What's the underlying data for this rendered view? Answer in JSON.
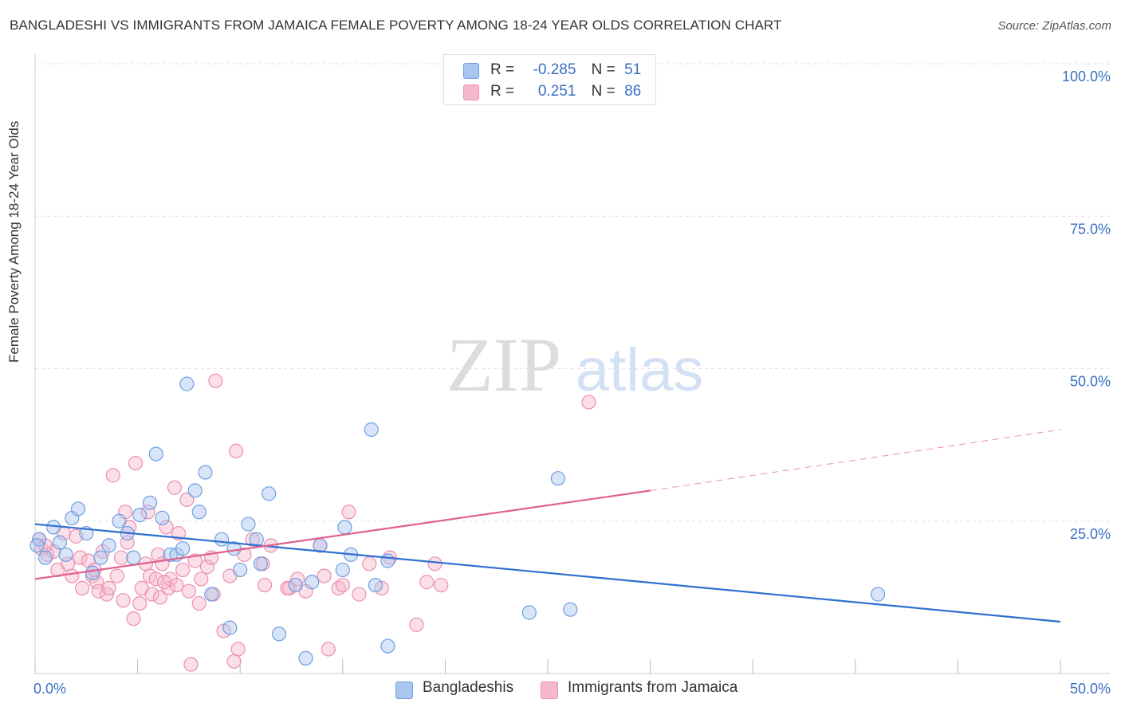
{
  "header": {
    "title": "BANGLADESHI VS IMMIGRANTS FROM JAMAICA FEMALE POVERTY AMONG 18-24 YEAR OLDS CORRELATION CHART",
    "source": "Source: ZipAtlas.com"
  },
  "legend": {
    "rows": [
      {
        "r_label": "R =",
        "r_value": "-0.285",
        "n_label": "N =",
        "n_value": "51"
      },
      {
        "r_label": "R =",
        "r_value": "0.251",
        "n_label": "N =",
        "n_value": "86"
      }
    ],
    "bottom": [
      "Bangladeshis",
      "Immigrants from Jamaica"
    ]
  },
  "watermark": {
    "zip": "ZIP",
    "atlas": "atlas"
  },
  "chart_data": {
    "type": "scatter",
    "ylabel": "Female Poverty Among 18-24 Year Olds",
    "xlim": [
      0,
      50
    ],
    "ylim": [
      0,
      100
    ],
    "x_tick_labels": [
      {
        "value": 0,
        "label": "0.0%"
      },
      {
        "value": 50,
        "label": "50.0%"
      }
    ],
    "y_tick_labels": [
      {
        "value": 25,
        "label": "25.0%"
      },
      {
        "value": 50,
        "label": "50.0%"
      },
      {
        "value": 75,
        "label": "75.0%"
      },
      {
        "value": 100,
        "label": "100.0%"
      }
    ],
    "grid": true,
    "legend_position": "top-center",
    "colors": {
      "bangladeshi_fill": "#a9c6f0",
      "bangladeshi_stroke": "#6f9edf",
      "bangladeshi_line": "#2f6fcf",
      "jamaica_fill": "#f6b8cc",
      "jamaica_stroke": "#ec8fae",
      "jamaica_line": "#e0608f",
      "tick_label": "#3a6fc4",
      "grid": "#e2e2e2"
    },
    "series": [
      {
        "name": "Bangladeshis",
        "trend": {
          "x": [
            0,
            50
          ],
          "y": [
            24.5,
            8.5
          ]
        },
        "points": [
          {
            "x": 0.2,
            "y": 22.0
          },
          {
            "x": 0.5,
            "y": 19.0
          },
          {
            "x": 0.9,
            "y": 24.0
          },
          {
            "x": 1.2,
            "y": 21.5
          },
          {
            "x": 1.5,
            "y": 19.5
          },
          {
            "x": 1.8,
            "y": 25.5
          },
          {
            "x": 2.1,
            "y": 27.0
          },
          {
            "x": 2.5,
            "y": 23.0
          },
          {
            "x": 2.8,
            "y": 16.5
          },
          {
            "x": 3.2,
            "y": 19.0
          },
          {
            "x": 3.6,
            "y": 21.0
          },
          {
            "x": 4.1,
            "y": 25.0
          },
          {
            "x": 4.5,
            "y": 23.0
          },
          {
            "x": 4.8,
            "y": 19.0
          },
          {
            "x": 5.1,
            "y": 26.0
          },
          {
            "x": 5.6,
            "y": 28.0
          },
          {
            "x": 5.9,
            "y": 36.0
          },
          {
            "x": 6.2,
            "y": 25.5
          },
          {
            "x": 6.6,
            "y": 19.5
          },
          {
            "x": 6.9,
            "y": 19.5
          },
          {
            "x": 7.2,
            "y": 20.5
          },
          {
            "x": 7.4,
            "y": 47.5
          },
          {
            "x": 7.8,
            "y": 30.0
          },
          {
            "x": 8.0,
            "y": 26.5
          },
          {
            "x": 8.3,
            "y": 33.0
          },
          {
            "x": 8.6,
            "y": 13.0
          },
          {
            "x": 9.1,
            "y": 22.0
          },
          {
            "x": 9.5,
            "y": 7.5
          },
          {
            "x": 9.7,
            "y": 20.5
          },
          {
            "x": 10.0,
            "y": 17.0
          },
          {
            "x": 10.4,
            "y": 24.5
          },
          {
            "x": 10.8,
            "y": 22.0
          },
          {
            "x": 11.0,
            "y": 18.0
          },
          {
            "x": 11.4,
            "y": 29.5
          },
          {
            "x": 11.9,
            "y": 6.5
          },
          {
            "x": 12.7,
            "y": 14.5
          },
          {
            "x": 13.2,
            "y": 2.5
          },
          {
            "x": 13.5,
            "y": 15.0
          },
          {
            "x": 13.9,
            "y": 21.0
          },
          {
            "x": 15.0,
            "y": 17.0
          },
          {
            "x": 15.1,
            "y": 24.0
          },
          {
            "x": 15.4,
            "y": 19.5
          },
          {
            "x": 16.4,
            "y": 40.0
          },
          {
            "x": 16.6,
            "y": 14.5
          },
          {
            "x": 17.2,
            "y": 4.5
          },
          {
            "x": 17.2,
            "y": 18.5
          },
          {
            "x": 24.1,
            "y": 10.0
          },
          {
            "x": 25.5,
            "y": 32.0
          },
          {
            "x": 26.1,
            "y": 10.5
          },
          {
            "x": 41.1,
            "y": 13.0
          },
          {
            "x": 0.1,
            "y": 21.0
          }
        ]
      },
      {
        "name": "Immigrants from Jamaica",
        "trend": {
          "x": [
            0,
            30
          ],
          "y": [
            15.5,
            30.0
          ]
        },
        "trend_dashed": {
          "x": [
            30,
            50
          ],
          "y": [
            30.0,
            40.0
          ]
        },
        "points": [
          {
            "x": 0.3,
            "y": 20.5
          },
          {
            "x": 0.6,
            "y": 19.5
          },
          {
            "x": 0.9,
            "y": 20.0
          },
          {
            "x": 1.1,
            "y": 17.0
          },
          {
            "x": 1.4,
            "y": 23.0
          },
          {
            "x": 1.6,
            "y": 18.0
          },
          {
            "x": 1.8,
            "y": 16.0
          },
          {
            "x": 2.0,
            "y": 22.5
          },
          {
            "x": 2.2,
            "y": 19.0
          },
          {
            "x": 2.3,
            "y": 14.0
          },
          {
            "x": 2.6,
            "y": 18.5
          },
          {
            "x": 2.8,
            "y": 16.0
          },
          {
            "x": 3.0,
            "y": 15.0
          },
          {
            "x": 3.1,
            "y": 13.5
          },
          {
            "x": 3.3,
            "y": 20.0
          },
          {
            "x": 3.5,
            "y": 13.0
          },
          {
            "x": 3.6,
            "y": 14.0
          },
          {
            "x": 3.8,
            "y": 32.5
          },
          {
            "x": 4.0,
            "y": 16.0
          },
          {
            "x": 4.2,
            "y": 19.0
          },
          {
            "x": 4.3,
            "y": 12.0
          },
          {
            "x": 4.4,
            "y": 26.5
          },
          {
            "x": 4.5,
            "y": 21.5
          },
          {
            "x": 4.6,
            "y": 24.0
          },
          {
            "x": 4.8,
            "y": 9.0
          },
          {
            "x": 4.9,
            "y": 34.5
          },
          {
            "x": 5.1,
            "y": 11.5
          },
          {
            "x": 5.2,
            "y": 14.0
          },
          {
            "x": 5.4,
            "y": 18.0
          },
          {
            "x": 5.5,
            "y": 26.5
          },
          {
            "x": 5.6,
            "y": 16.0
          },
          {
            "x": 5.7,
            "y": 13.0
          },
          {
            "x": 5.9,
            "y": 15.5
          },
          {
            "x": 6.0,
            "y": 19.5
          },
          {
            "x": 6.1,
            "y": 12.5
          },
          {
            "x": 6.2,
            "y": 18.0
          },
          {
            "x": 6.4,
            "y": 24.0
          },
          {
            "x": 6.5,
            "y": 14.0
          },
          {
            "x": 6.6,
            "y": 15.5
          },
          {
            "x": 6.8,
            "y": 30.5
          },
          {
            "x": 6.9,
            "y": 14.5
          },
          {
            "x": 7.0,
            "y": 23.0
          },
          {
            "x": 7.2,
            "y": 17.0
          },
          {
            "x": 7.4,
            "y": 28.5
          },
          {
            "x": 7.5,
            "y": 13.5
          },
          {
            "x": 7.6,
            "y": 1.5
          },
          {
            "x": 7.8,
            "y": 18.5
          },
          {
            "x": 8.0,
            "y": 11.5
          },
          {
            "x": 8.1,
            "y": 15.5
          },
          {
            "x": 8.4,
            "y": 17.5
          },
          {
            "x": 8.6,
            "y": 19.0
          },
          {
            "x": 8.7,
            "y": 13.0
          },
          {
            "x": 8.8,
            "y": 48.0
          },
          {
            "x": 9.2,
            "y": 7.0
          },
          {
            "x": 9.5,
            "y": 16.0
          },
          {
            "x": 9.7,
            "y": 2.0
          },
          {
            "x": 9.8,
            "y": 36.5
          },
          {
            "x": 9.9,
            "y": 4.0
          },
          {
            "x": 10.2,
            "y": 19.5
          },
          {
            "x": 10.6,
            "y": 22.0
          },
          {
            "x": 11.1,
            "y": 18.0
          },
          {
            "x": 11.2,
            "y": 14.5
          },
          {
            "x": 11.5,
            "y": 21.0
          },
          {
            "x": 12.4,
            "y": 14.0
          },
          {
            "x": 12.8,
            "y": 15.5
          },
          {
            "x": 13.2,
            "y": 13.5
          },
          {
            "x": 13.9,
            "y": 21.0
          },
          {
            "x": 14.1,
            "y": 16.0
          },
          {
            "x": 14.3,
            "y": 4.0
          },
          {
            "x": 14.8,
            "y": 14.0
          },
          {
            "x": 15.0,
            "y": 14.5
          },
          {
            "x": 15.3,
            "y": 26.5
          },
          {
            "x": 15.8,
            "y": 13.0
          },
          {
            "x": 16.3,
            "y": 18.0
          },
          {
            "x": 16.9,
            "y": 14.0
          },
          {
            "x": 17.3,
            "y": 19.0
          },
          {
            "x": 18.6,
            "y": 8.0
          },
          {
            "x": 19.1,
            "y": 15.0
          },
          {
            "x": 19.5,
            "y": 18.0
          },
          {
            "x": 19.8,
            "y": 14.5
          },
          {
            "x": 27.0,
            "y": 44.5
          },
          {
            "x": 0.2,
            "y": 22.0
          },
          {
            "x": 0.5,
            "y": 21.0
          },
          {
            "x": 2.9,
            "y": 17.0
          },
          {
            "x": 6.3,
            "y": 15.0
          },
          {
            "x": 12.3,
            "y": 14.0
          }
        ]
      }
    ]
  }
}
